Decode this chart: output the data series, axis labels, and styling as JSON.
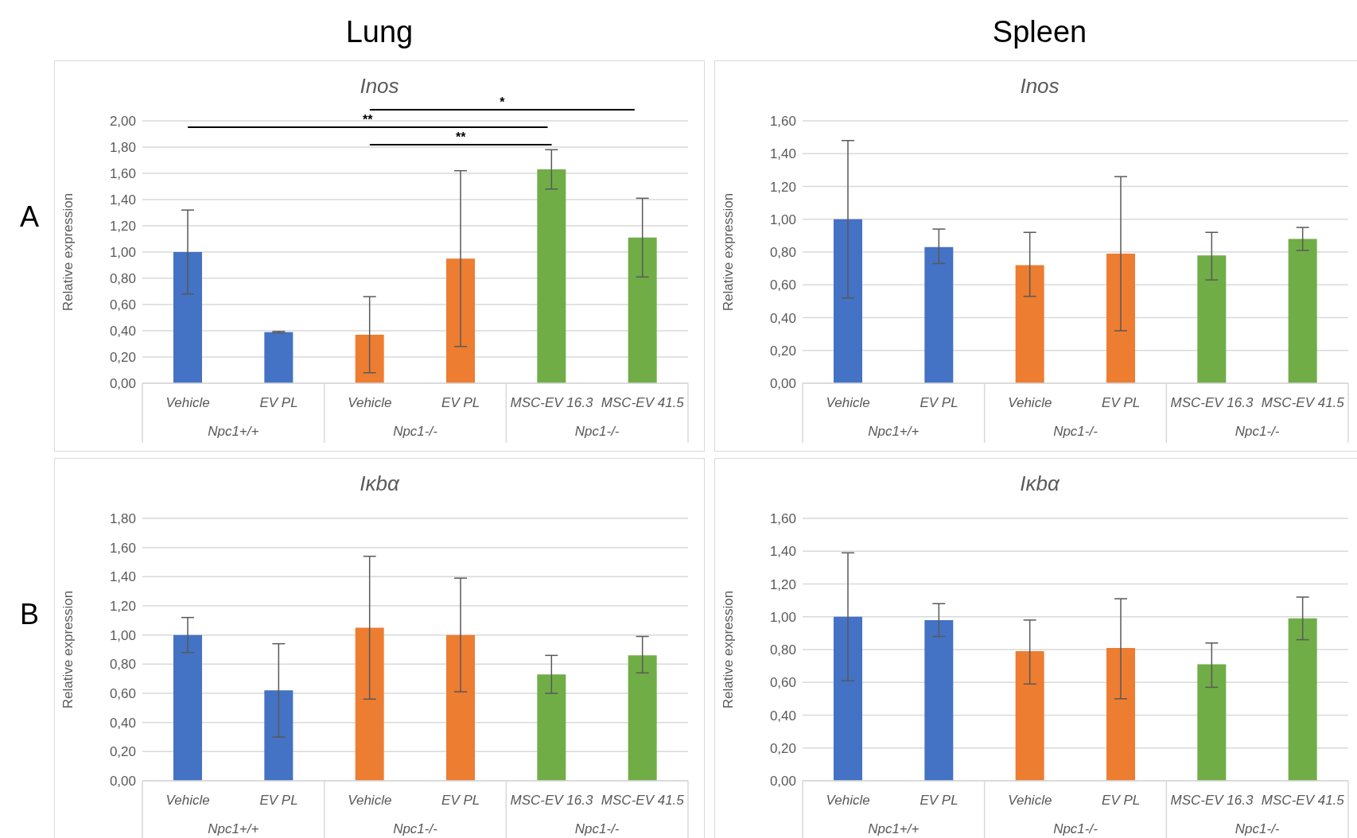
{
  "chart_data": [
    {
      "type": "bar",
      "title": "Inos",
      "ylabel": "Relative expression",
      "categories": [
        "Vehicle",
        "EV PL",
        "Vehicle",
        "EV PL",
        "MSC-EV 16.3",
        "MSC-EV 41.5"
      ],
      "values": [
        1.0,
        0.39,
        0.37,
        0.95,
        1.63,
        1.11
      ],
      "errors": [
        [
          0.68,
          1.32
        ],
        [
          0.385,
          0.395
        ],
        [
          0.08,
          0.66
        ],
        [
          0.28,
          1.62
        ],
        [
          1.48,
          1.78
        ],
        [
          0.81,
          1.41
        ]
      ],
      "colors": [
        "#4472c4",
        "#4472c4",
        "#ed7d31",
        "#ed7d31",
        "#70ad47",
        "#70ad47"
      ],
      "ylim": [
        0,
        2
      ],
      "yticks": [
        {
          "value": 0,
          "label": "0,00"
        },
        {
          "value": 0.2,
          "label": "0,20"
        },
        {
          "value": 0.4,
          "label": "0,40"
        },
        {
          "value": 0.6,
          "label": "0,60"
        },
        {
          "value": 0.8,
          "label": "0,80"
        },
        {
          "value": 1,
          "label": "1,00"
        },
        {
          "value": 1.2,
          "label": "1,20"
        },
        {
          "value": 1.4,
          "label": "1,40"
        },
        {
          "value": 1.6,
          "label": "1,60"
        },
        {
          "value": 1.8,
          "label": "1,80"
        },
        {
          "value": 2,
          "label": "2,00"
        }
      ],
      "grid": "y",
      "annotations": [
        "Npc1+/+",
        "Npc1-/-",
        "Npc1-/-",
        "Lung",
        "A",
        "*",
        "**",
        "**"
      ]
    },
    {
      "type": "bar",
      "title": "Inos",
      "ylabel": "Relative expression",
      "categories": [
        "Vehicle",
        "EV PL",
        "Vehicle",
        "EV PL",
        "MSC-EV 16.3",
        "MSC-EV 41.5"
      ],
      "values": [
        1.0,
        0.83,
        0.72,
        0.79,
        0.78,
        0.88
      ],
      "errors": [
        [
          0.52,
          1.48
        ],
        [
          0.73,
          0.94
        ],
        [
          0.53,
          0.92
        ],
        [
          0.32,
          1.26
        ],
        [
          0.63,
          0.92
        ],
        [
          0.81,
          0.95
        ]
      ],
      "colors": [
        "#4472c4",
        "#4472c4",
        "#ed7d31",
        "#ed7d31",
        "#70ad47",
        "#70ad47"
      ],
      "ylim": [
        0,
        1.6
      ],
      "yticks": [
        {
          "value": 0,
          "label": "0,00"
        },
        {
          "value": 0.2,
          "label": "0,20"
        },
        {
          "value": 0.4,
          "label": "0,40"
        },
        {
          "value": 0.6,
          "label": "0,60"
        },
        {
          "value": 0.8,
          "label": "0,80"
        },
        {
          "value": 1,
          "label": "1,00"
        },
        {
          "value": 1.2,
          "label": "1,20"
        },
        {
          "value": 1.4,
          "label": "1,40"
        },
        {
          "value": 1.6,
          "label": "1,60"
        }
      ],
      "grid": "y",
      "annotations": [
        "Npc1+/+",
        "Npc1-/-",
        "Npc1-/-",
        "Spleen"
      ]
    },
    {
      "type": "bar",
      "title": "Iκbα",
      "ylabel": "Relative expression",
      "categories": [
        "Vehicle",
        "EV PL",
        "Vehicle",
        "EV PL",
        "MSC-EV 16.3",
        "MSC-EV 41.5"
      ],
      "values": [
        1.0,
        0.62,
        1.05,
        1.0,
        0.73,
        0.86
      ],
      "errors": [
        [
          0.88,
          1.12
        ],
        [
          0.3,
          0.94
        ],
        [
          0.56,
          1.54
        ],
        [
          0.61,
          1.39
        ],
        [
          0.6,
          0.86
        ],
        [
          0.74,
          0.99
        ]
      ],
      "colors": [
        "#4472c4",
        "#4472c4",
        "#ed7d31",
        "#ed7d31",
        "#70ad47",
        "#70ad47"
      ],
      "ylim": [
        0,
        1.8
      ],
      "yticks": [
        {
          "value": 0,
          "label": "0,00"
        },
        {
          "value": 0.2,
          "label": "0,20"
        },
        {
          "value": 0.4,
          "label": "0,40"
        },
        {
          "value": 0.6,
          "label": "0,60"
        },
        {
          "value": 0.8,
          "label": "0,80"
        },
        {
          "value": 1,
          "label": "1,00"
        },
        {
          "value": 1.2,
          "label": "1,20"
        },
        {
          "value": 1.4,
          "label": "1,40"
        },
        {
          "value": 1.6,
          "label": "1,60"
        },
        {
          "value": 1.8,
          "label": "1,80"
        }
      ],
      "grid": "y",
      "annotations": [
        "Npc1+/+",
        "Npc1-/-",
        "Npc1-/-",
        "B"
      ]
    },
    {
      "type": "bar",
      "title": "Iκbα",
      "ylabel": "Relative expression",
      "categories": [
        "Vehicle",
        "EV PL",
        "Vehicle",
        "EV PL",
        "MSC-EV 16.3",
        "MSC-EV 41.5"
      ],
      "values": [
        1.0,
        0.98,
        0.79,
        0.81,
        0.71,
        0.99
      ],
      "errors": [
        [
          0.61,
          1.39
        ],
        [
          0.88,
          1.08
        ],
        [
          0.59,
          0.98
        ],
        [
          0.5,
          1.11
        ],
        [
          0.57,
          0.84
        ],
        [
          0.86,
          1.12
        ]
      ],
      "colors": [
        "#4472c4",
        "#4472c4",
        "#ed7d31",
        "#ed7d31",
        "#70ad47",
        "#70ad47"
      ],
      "ylim": [
        0,
        1.6
      ],
      "yticks": [
        {
          "value": 0,
          "label": "0,00"
        },
        {
          "value": 0.2,
          "label": "0,20"
        },
        {
          "value": 0.4,
          "label": "0,40"
        },
        {
          "value": 0.6,
          "label": "0,60"
        },
        {
          "value": 0.8,
          "label": "0,80"
        },
        {
          "value": 1,
          "label": "1,00"
        },
        {
          "value": 1.2,
          "label": "1,20"
        },
        {
          "value": 1.4,
          "label": "1,40"
        },
        {
          "value": 1.6,
          "label": "1,60"
        }
      ],
      "grid": "y",
      "annotations": [
        "Npc1+/+",
        "Npc1-/-",
        "Npc1-/-"
      ]
    }
  ]
}
